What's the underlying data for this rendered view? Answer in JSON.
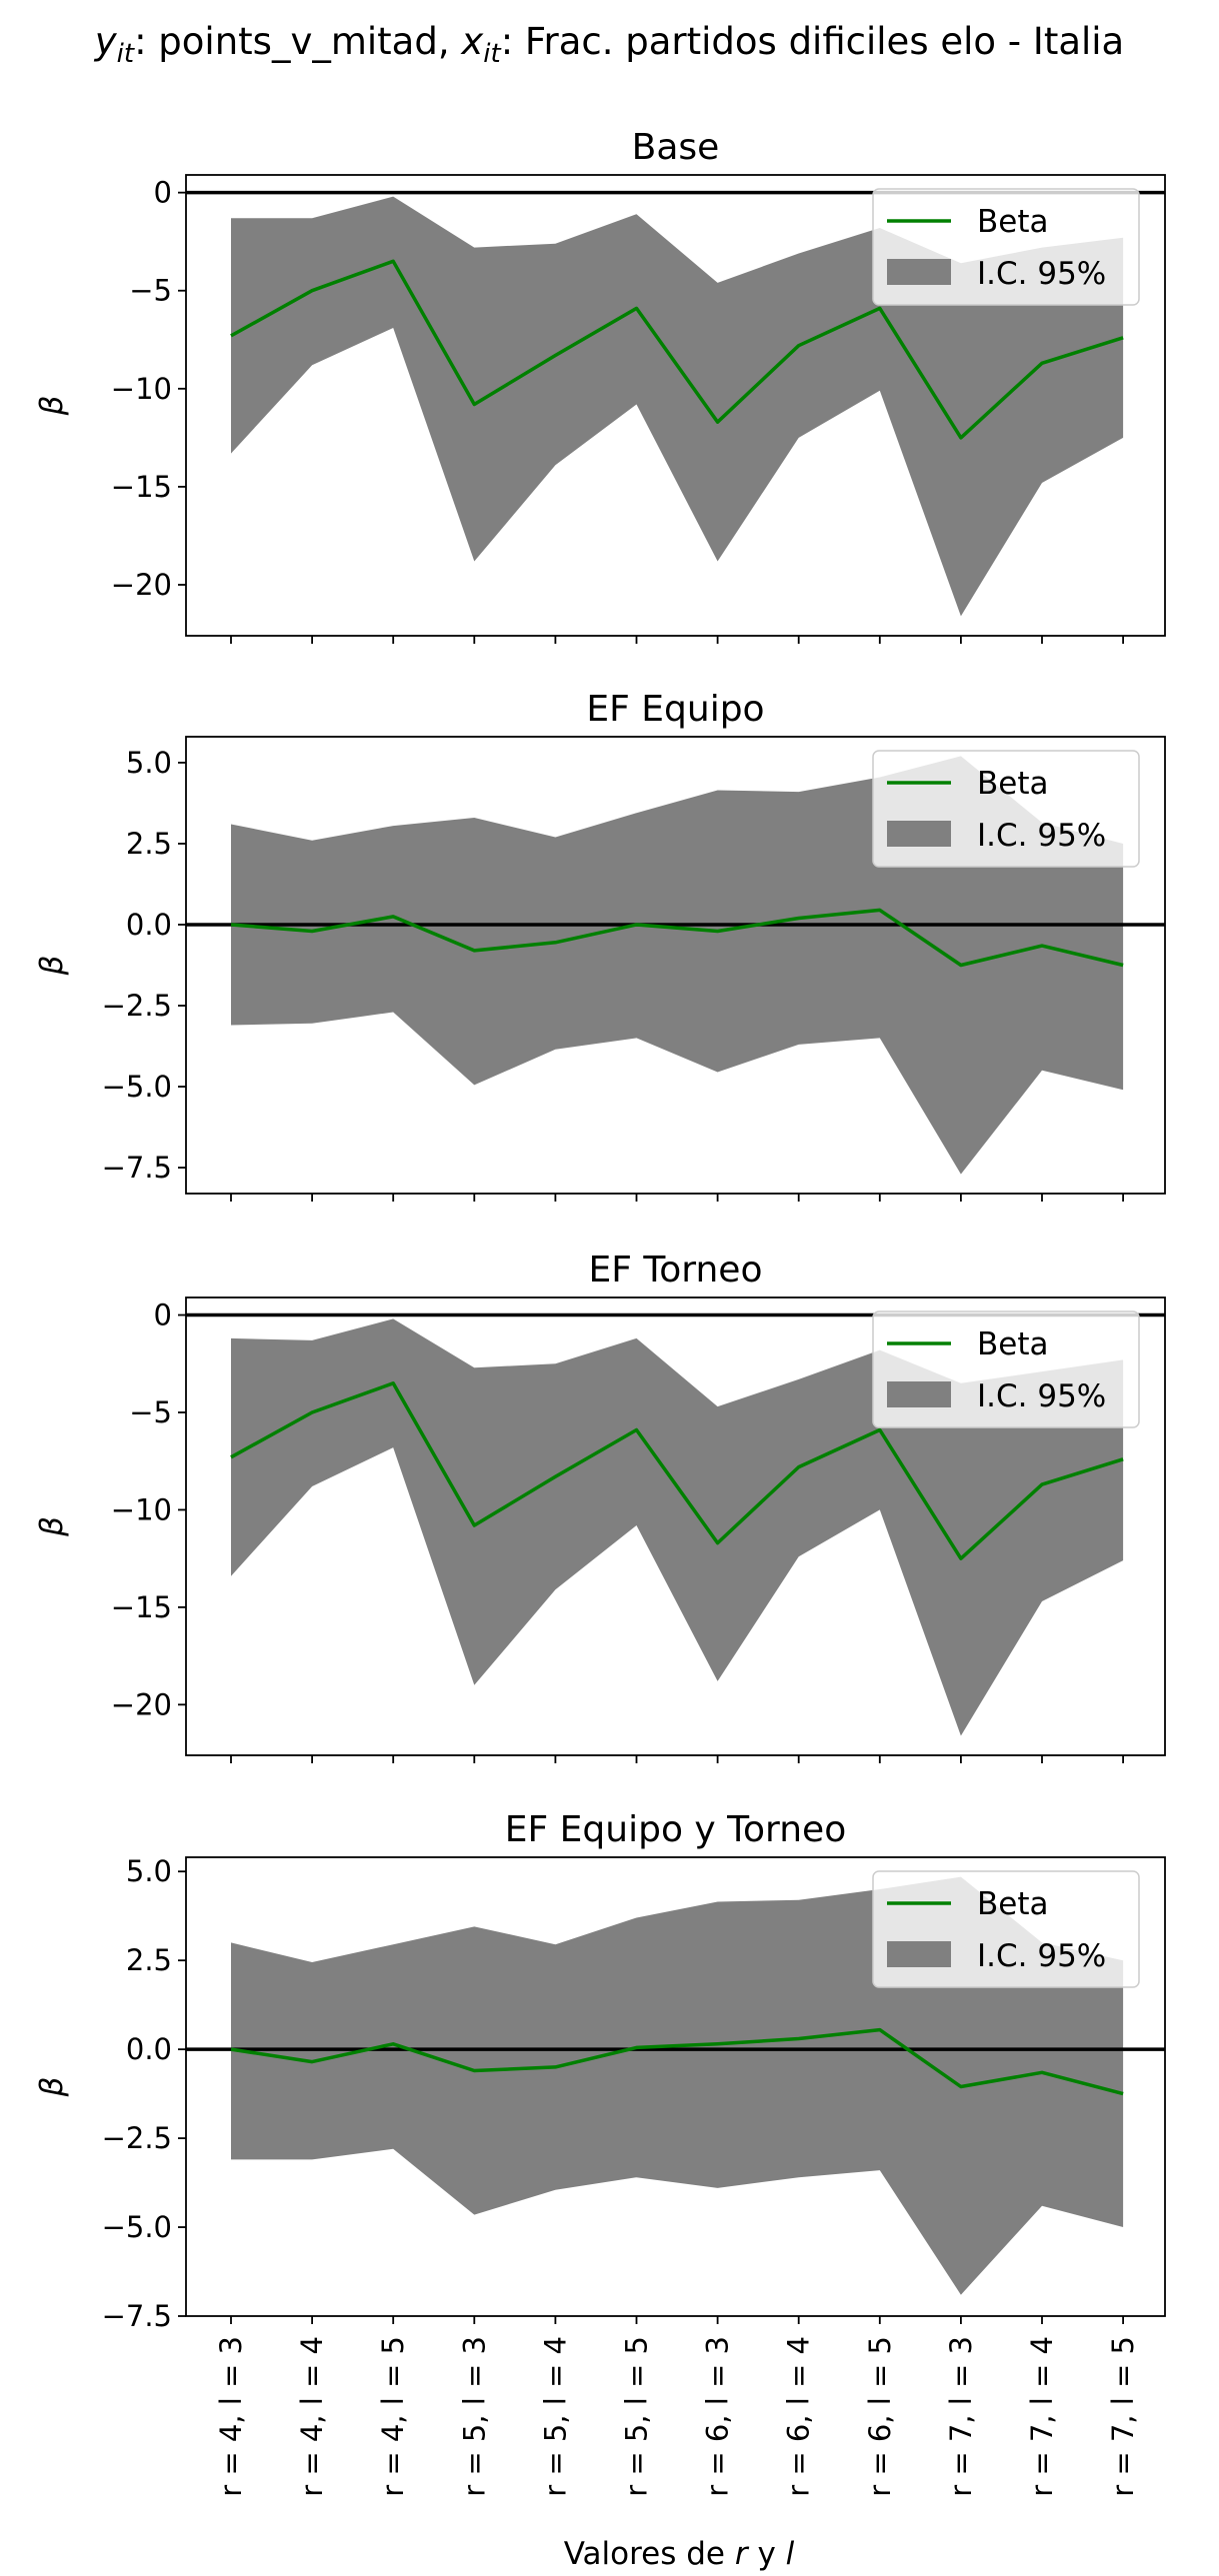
{
  "figure": {
    "suptitle": "y_it: points_v_mitad, x_it: Frac. partidos dificiles elo - Italia",
    "suptitle_parts": [
      "y",
      "it",
      ": points_v_mitad, ",
      "x",
      "it",
      ": Frac. partidos dificiles elo - Italia"
    ],
    "xlabel_prefix": "Valores de ",
    "xlabel_r": "r",
    "xlabel_mid": " y ",
    "xlabel_l": "l",
    "xlabel": "Valores de r y l"
  },
  "colors": {
    "beta_line": "#008000",
    "ci_fill": "#808080",
    "zero_line": "#000000",
    "axes": "#000000",
    "legend_bg": "#ffffff",
    "legend_border": "#cccccc"
  },
  "chart_data": [
    {
      "type": "line",
      "title": "Base",
      "ylabel": "β",
      "xlabel": "",
      "categories": [
        "r = 4, l = 3",
        "r = 4, l = 4",
        "r = 4, l = 5",
        "r = 5, l = 3",
        "r = 5, l = 4",
        "r = 5, l = 5",
        "r = 6, l = 3",
        "r = 6, l = 4",
        "r = 6, l = 5",
        "r = 7, l = 3",
        "r = 7, l = 4",
        "r = 7, l = 5"
      ],
      "series": [
        {
          "name": "Beta",
          "values": [
            -7.3,
            -5.0,
            -3.5,
            -10.8,
            -8.3,
            -5.9,
            -11.7,
            -7.8,
            -5.9,
            -12.5,
            -8.7,
            -7.4
          ]
        },
        {
          "name": "I.C. 95%",
          "lower": [
            -13.3,
            -8.8,
            -6.9,
            -18.8,
            -13.9,
            -10.8,
            -18.8,
            -12.5,
            -10.1,
            -21.6,
            -14.8,
            -12.5
          ],
          "upper": [
            -1.3,
            -1.3,
            -0.2,
            -2.8,
            -2.6,
            -1.1,
            -4.6,
            -3.1,
            -1.8,
            -3.6,
            -2.8,
            -2.3
          ]
        }
      ],
      "ylim": [
        -22.6,
        0.9
      ],
      "yticks": [
        0,
        -5,
        -10,
        -15,
        -20
      ],
      "ytick_labels": [
        "0",
        "−5",
        "−10",
        "−15",
        "−20"
      ],
      "hline": 0,
      "legend": [
        "Beta",
        "I.C. 95%"
      ],
      "legend_loc": "upper right",
      "grid": false,
      "show_xticklabels": false
    },
    {
      "type": "line",
      "title": "EF Equipo",
      "ylabel": "β",
      "xlabel": "",
      "categories": [
        "r = 4, l = 3",
        "r = 4, l = 4",
        "r = 4, l = 5",
        "r = 5, l = 3",
        "r = 5, l = 4",
        "r = 5, l = 5",
        "r = 6, l = 3",
        "r = 6, l = 4",
        "r = 6, l = 5",
        "r = 7, l = 3",
        "r = 7, l = 4",
        "r = 7, l = 5"
      ],
      "series": [
        {
          "name": "Beta",
          "values": [
            0.0,
            -0.2,
            0.25,
            -0.8,
            -0.55,
            0.0,
            -0.2,
            0.2,
            0.45,
            -1.25,
            -0.65,
            -1.25
          ]
        },
        {
          "name": "I.C. 95%",
          "lower": [
            -3.1,
            -3.05,
            -2.7,
            -4.95,
            -3.85,
            -3.5,
            -4.55,
            -3.7,
            -3.5,
            -7.7,
            -4.5,
            -5.1
          ],
          "upper": [
            3.1,
            2.6,
            3.05,
            3.3,
            2.7,
            3.45,
            4.15,
            4.1,
            4.55,
            5.2,
            3.15,
            2.5
          ]
        }
      ],
      "ylim": [
        -8.3,
        5.8
      ],
      "yticks": [
        5.0,
        2.5,
        0.0,
        -2.5,
        -5.0,
        -7.5
      ],
      "ytick_labels": [
        "5.0",
        "2.5",
        "0.0",
        "−2.5",
        "−5.0",
        "−7.5"
      ],
      "hline": 0,
      "legend": [
        "Beta",
        "I.C. 95%"
      ],
      "legend_loc": "upper right",
      "grid": false,
      "show_xticklabels": false
    },
    {
      "type": "line",
      "title": "EF Torneo",
      "ylabel": "β",
      "xlabel": "",
      "categories": [
        "r = 4, l = 3",
        "r = 4, l = 4",
        "r = 4, l = 5",
        "r = 5, l = 3",
        "r = 5, l = 4",
        "r = 5, l = 5",
        "r = 6, l = 3",
        "r = 6, l = 4",
        "r = 6, l = 5",
        "r = 7, l = 3",
        "r = 7, l = 4",
        "r = 7, l = 5"
      ],
      "series": [
        {
          "name": "Beta",
          "values": [
            -7.3,
            -5.0,
            -3.5,
            -10.8,
            -8.3,
            -5.9,
            -11.7,
            -7.8,
            -5.9,
            -12.5,
            -8.7,
            -7.4
          ]
        },
        {
          "name": "I.C. 95%",
          "lower": [
            -13.4,
            -8.8,
            -6.8,
            -19.0,
            -14.1,
            -10.8,
            -18.8,
            -12.4,
            -10.0,
            -21.6,
            -14.7,
            -12.6
          ],
          "upper": [
            -1.2,
            -1.3,
            -0.2,
            -2.7,
            -2.5,
            -1.2,
            -4.7,
            -3.3,
            -1.8,
            -3.5,
            -2.9,
            -2.3
          ]
        }
      ],
      "ylim": [
        -22.6,
        0.9
      ],
      "yticks": [
        0,
        -5,
        -10,
        -15,
        -20
      ],
      "ytick_labels": [
        "0",
        "−5",
        "−10",
        "−15",
        "−20"
      ],
      "hline": 0,
      "legend": [
        "Beta",
        "I.C. 95%"
      ],
      "legend_loc": "upper right",
      "grid": false,
      "show_xticklabels": false
    },
    {
      "type": "line",
      "title": "EF Equipo y Torneo",
      "ylabel": "β",
      "xlabel": "Valores de r y l",
      "categories": [
        "r = 4, l = 3",
        "r = 4, l = 4",
        "r = 4, l = 5",
        "r = 5, l = 3",
        "r = 5, l = 4",
        "r = 5, l = 5",
        "r = 6, l = 3",
        "r = 6, l = 4",
        "r = 6, l = 5",
        "r = 7, l = 3",
        "r = 7, l = 4",
        "r = 7, l = 5"
      ],
      "series": [
        {
          "name": "Beta",
          "values": [
            0.0,
            -0.35,
            0.15,
            -0.6,
            -0.5,
            0.05,
            0.15,
            0.3,
            0.55,
            -1.05,
            -0.65,
            -1.25
          ]
        },
        {
          "name": "I.C. 95%",
          "lower": [
            -3.1,
            -3.1,
            -2.8,
            -4.65,
            -3.95,
            -3.6,
            -3.9,
            -3.6,
            -3.4,
            -6.9,
            -4.4,
            -5.0
          ],
          "upper": [
            3.0,
            2.45,
            2.95,
            3.45,
            2.95,
            3.7,
            4.15,
            4.2,
            4.5,
            4.85,
            3.0,
            2.5
          ]
        }
      ],
      "ylim": [
        -7.5,
        5.4
      ],
      "yticks": [
        5.0,
        2.5,
        0.0,
        -2.5,
        -5.0,
        -7.5
      ],
      "ytick_labels": [
        "5.0",
        "2.5",
        "0.0",
        "−2.5",
        "−5.0",
        "−7.5"
      ],
      "hline": 0,
      "legend": [
        "Beta",
        "I.C. 95%"
      ],
      "legend_loc": "upper right",
      "grid": false,
      "show_xticklabels": true
    }
  ]
}
